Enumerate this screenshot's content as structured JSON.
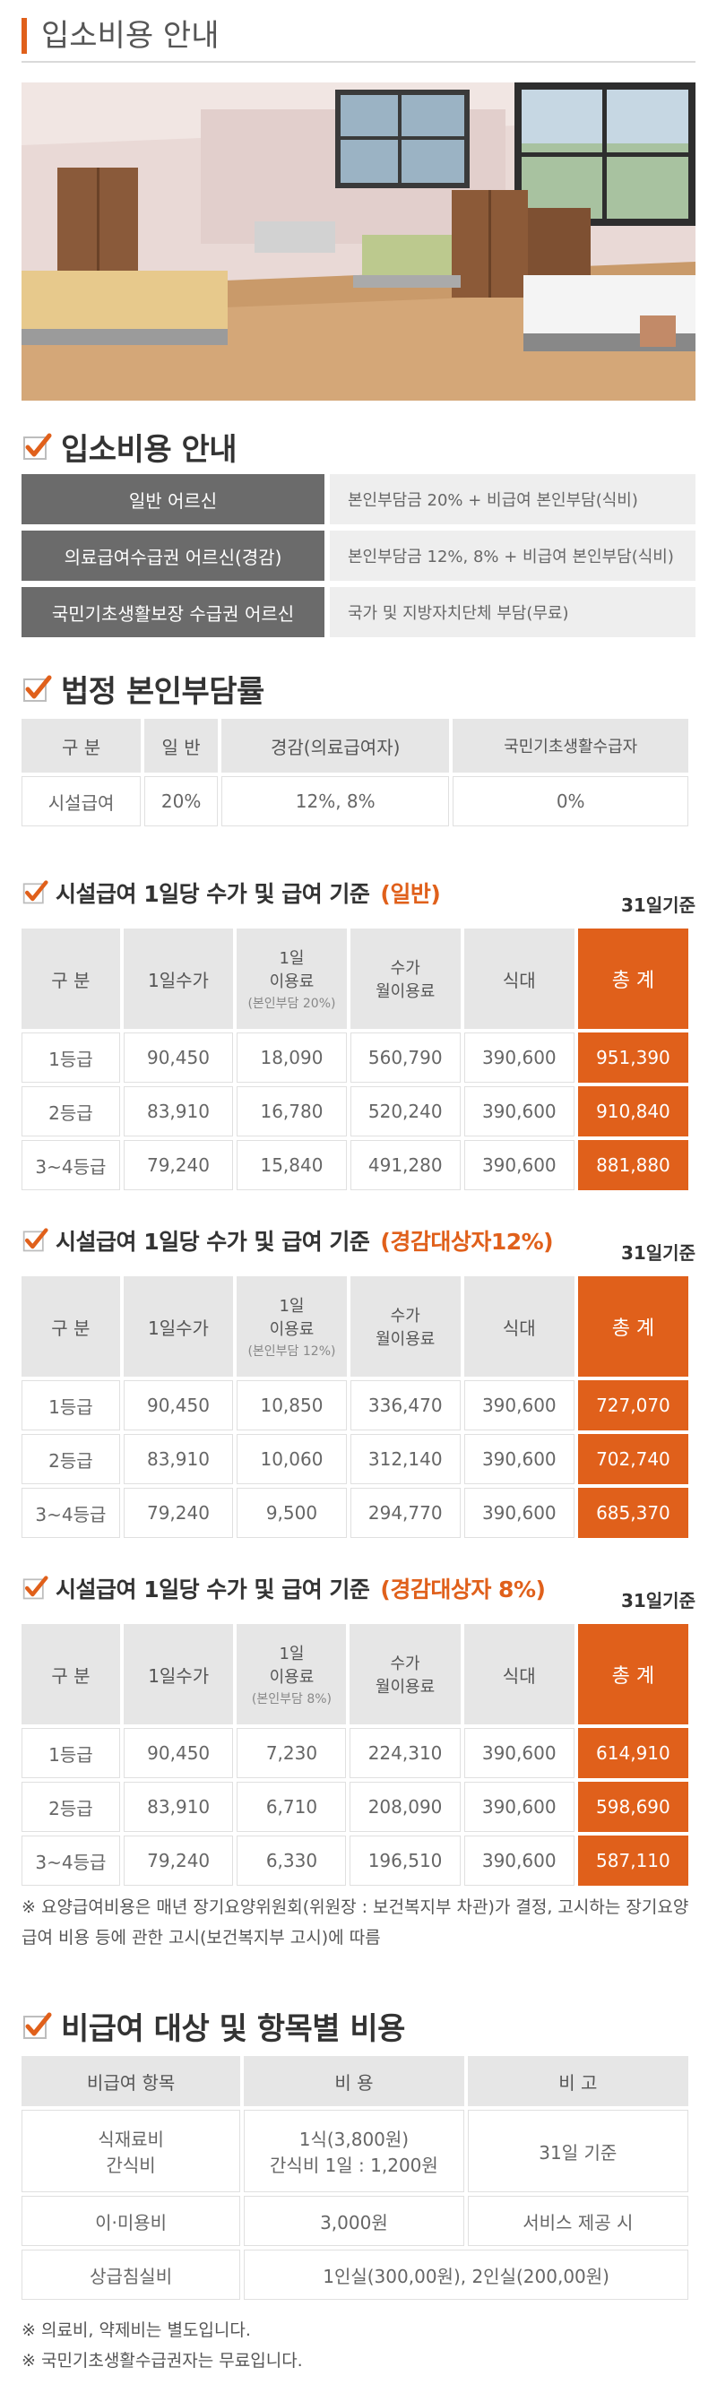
{
  "header": {
    "title": "입소비용 안내"
  },
  "section_fee": {
    "title": "입소비용 안내",
    "rows": [
      {
        "label": "일반 어르신",
        "value": "본인부담금 20% + 비급여 본인부담(식비)"
      },
      {
        "label": "의료급여수급권 어르신(경감)",
        "value": "본인부담금 12%, 8% + 비급여 본인부담(식비)"
      },
      {
        "label": "국민기초생활보장 수급권 어르신",
        "value": "국가 및 지방자치단체 부담(무료)"
      }
    ]
  },
  "section_rate": {
    "title": "법정 본인부담률",
    "headers": [
      "구 분",
      "일 반",
      "경감(의료급여자)",
      "국민기초생활수급자"
    ],
    "row": [
      "시설급여",
      "20%",
      "12%, 8%",
      "0%"
    ]
  },
  "basis_label": "31일기준",
  "daily_tables": [
    {
      "title": "시설급여 1일당 수가 및 급여 기준",
      "highlight": "(일반)",
      "headers": {
        "c1": "구 분",
        "c2": "1일수가",
        "c3a": "1일",
        "c3b": "이용료",
        "c3c": "(본인부담 20%)",
        "c4a": "수가",
        "c4b": "월이용료",
        "c5": "식대",
        "c6": "총 계"
      },
      "rows": [
        [
          "1등급",
          "90,450",
          "18,090",
          "560,790",
          "390,600",
          "951,390"
        ],
        [
          "2등급",
          "83,910",
          "16,780",
          "520,240",
          "390,600",
          "910,840"
        ],
        [
          "3~4등급",
          "79,240",
          "15,840",
          "491,280",
          "390,600",
          "881,880"
        ]
      ]
    },
    {
      "title": "시설급여 1일당 수가 및 급여 기준",
      "highlight": "(경감대상자12%)",
      "headers": {
        "c1": "구 분",
        "c2": "1일수가",
        "c3a": "1일",
        "c3b": "이용료",
        "c3c": "(본인부담 12%)",
        "c4a": "수가",
        "c4b": "월이용료",
        "c5": "식대",
        "c6": "총 계"
      },
      "rows": [
        [
          "1등급",
          "90,450",
          "10,850",
          "336,470",
          "390,600",
          "727,070"
        ],
        [
          "2등급",
          "83,910",
          "10,060",
          "312,140",
          "390,600",
          "702,740"
        ],
        [
          "3~4등급",
          "79,240",
          "9,500",
          "294,770",
          "390,600",
          "685,370"
        ]
      ]
    },
    {
      "title": "시설급여 1일당 수가 및 급여 기준",
      "highlight": "(경감대상자 8%)",
      "headers": {
        "c1": "구 분",
        "c2": "1일수가",
        "c3a": "1일",
        "c3b": "이용료",
        "c3c": "(본인부담 8%)",
        "c4a": "수가",
        "c4b": "월이용료",
        "c5": "식대",
        "c6": "총 계"
      },
      "rows": [
        [
          "1등급",
          "90,450",
          "7,230",
          "224,310",
          "390,600",
          "614,910"
        ],
        [
          "2등급",
          "83,910",
          "6,710",
          "208,090",
          "390,600",
          "598,690"
        ],
        [
          "3~4등급",
          "79,240",
          "6,330",
          "196,510",
          "390,600",
          "587,110"
        ]
      ]
    }
  ],
  "notice_1": "※ 요양급여비용은 매년 장기요양위원회(위원장 : 보건복지부 차관)가 결정, 고시하는 장기요양급여 비용 등에 관한 고시(보건복지부 고시)에 따름",
  "section_nonpay": {
    "title": "비급여 대상 및 항목별 비용",
    "headers": [
      "비급여 항목",
      "비 용",
      "비 고"
    ],
    "rows": [
      {
        "item_a": "식재료비",
        "item_b": "간식비",
        "cost_a": "1식(3,800원)",
        "cost_b": "간식비 1일 : 1,200원",
        "note": "31일 기준"
      },
      {
        "item_a": "이·미용비",
        "cost_a": "3,000원",
        "note": "서비스 제공 시"
      },
      {
        "item_a": "상급침실비",
        "cost_a": "1인실(300,00원), 2인실(200,00원)"
      }
    ]
  },
  "footnotes": [
    "※ 의료비, 약제비는 별도입니다.",
    "※ 국민기초생활수급권자는 무료입니다."
  ],
  "colors": {
    "accent": "#e0601b",
    "label_bg": "#6b6b6b",
    "header_bg": "#e6e6e6",
    "value_bg": "#eeeeee"
  },
  "icons": {
    "section": "check-icon",
    "photo": "facility-room-photo"
  }
}
